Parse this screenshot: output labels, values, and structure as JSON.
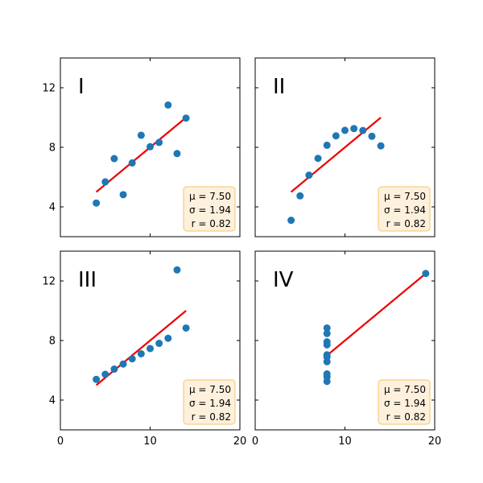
{
  "chart_data": [
    {
      "type": "scatter",
      "panel_label": "I",
      "x": [
        10,
        8,
        13,
        9,
        11,
        14,
        6,
        4,
        12,
        7,
        5
      ],
      "y": [
        8.04,
        6.95,
        7.58,
        8.81,
        8.33,
        9.96,
        7.24,
        4.26,
        10.84,
        4.82,
        5.68
      ],
      "fit_line": {
        "slope": 0.5,
        "intercept": 3,
        "x_range": [
          4,
          14
        ]
      },
      "stats": [
        "μ = 7.50",
        "σ = 1.94",
        "r = 0.82"
      ],
      "xlim": [
        0,
        20
      ],
      "ylim": [
        2,
        14
      ],
      "xticks": [
        "0",
        "10",
        "20"
      ],
      "yticks": [
        "4",
        "8",
        "12"
      ],
      "grid": false
    },
    {
      "type": "scatter",
      "panel_label": "II",
      "x": [
        10,
        8,
        13,
        9,
        11,
        14,
        6,
        4,
        12,
        7,
        5
      ],
      "y": [
        9.14,
        8.14,
        8.74,
        8.77,
        9.26,
        8.1,
        6.13,
        3.1,
        9.13,
        7.26,
        4.74
      ],
      "fit_line": {
        "slope": 0.5,
        "intercept": 3,
        "x_range": [
          4,
          14
        ]
      },
      "stats": [
        "μ = 7.50",
        "σ = 1.94",
        "r = 0.82"
      ],
      "xlim": [
        0,
        20
      ],
      "ylim": [
        2,
        14
      ],
      "xticks": [
        "0",
        "10",
        "20"
      ],
      "yticks": [
        "4",
        "8",
        "12"
      ],
      "grid": false
    },
    {
      "type": "scatter",
      "panel_label": "III",
      "x": [
        10,
        8,
        13,
        9,
        11,
        14,
        6,
        4,
        12,
        7,
        5
      ],
      "y": [
        7.46,
        6.77,
        12.74,
        7.11,
        7.81,
        8.84,
        6.08,
        5.39,
        8.15,
        6.42,
        5.73
      ],
      "fit_line": {
        "slope": 0.5,
        "intercept": 3,
        "x_range": [
          4,
          14
        ]
      },
      "stats": [
        "μ = 7.50",
        "σ = 1.94",
        "r = 0.82"
      ],
      "xlim": [
        0,
        20
      ],
      "ylim": [
        2,
        14
      ],
      "xticks": [
        "0",
        "10",
        "20"
      ],
      "yticks": [
        "4",
        "8",
        "12"
      ],
      "grid": false
    },
    {
      "type": "scatter",
      "panel_label": "IV",
      "x": [
        8,
        8,
        8,
        8,
        8,
        8,
        8,
        19,
        8,
        8,
        8
      ],
      "y": [
        6.58,
        5.76,
        7.71,
        8.84,
        8.47,
        7.04,
        5.25,
        12.5,
        5.56,
        7.91,
        6.89
      ],
      "fit_line": {
        "slope": 0.5,
        "intercept": 3,
        "x_range": [
          8,
          19
        ]
      },
      "stats": [
        "μ = 7.50",
        "σ = 1.94",
        "r = 0.82"
      ],
      "xlim": [
        0,
        20
      ],
      "ylim": [
        2,
        14
      ],
      "xticks": [
        "0",
        "10",
        "20"
      ],
      "yticks": [
        "4",
        "8",
        "12"
      ],
      "grid": false
    }
  ],
  "colors": {
    "points": "#1f77b4",
    "fit_line": "#ee0000",
    "stat_box_fill": "#fdf0dc",
    "stat_box_edge": "#f5c46a"
  }
}
